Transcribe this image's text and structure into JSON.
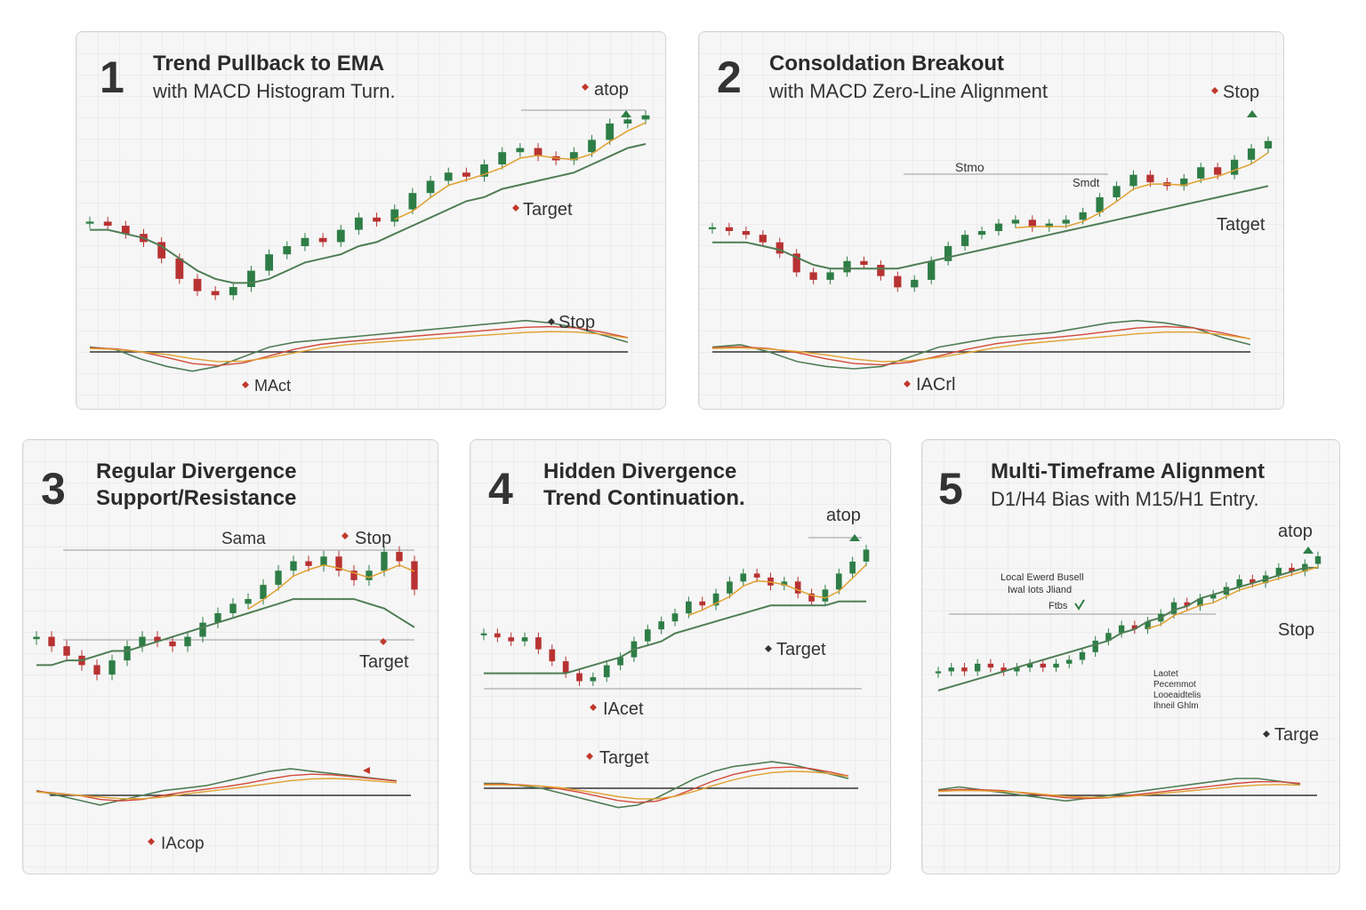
{
  "panels": [
    {
      "number": "1",
      "title": "Trend Pullback to EMA",
      "subtitle": "with MACD Histogram Turn.",
      "annotations": [
        "atop",
        "Target",
        "Stop",
        "MAct"
      ],
      "chart_data": {
        "type": "line",
        "series": [
          {
            "values": [
              72,
              71,
              69,
              67,
              63,
              58,
              55,
              54,
              56,
              60,
              64,
              66,
              68,
              67,
              70,
              73,
              72,
              75,
              79,
              82,
              84,
              83,
              86,
              89,
              90,
              88,
              87,
              89,
              92,
              96,
              97,
              98
            ]
          },
          {
            "values": [
              70,
              70,
              69,
              68,
              66,
              63,
              60,
              58,
              57,
              57,
              58,
              60,
              62,
              63,
              64,
              66,
              67,
              69,
              71,
              73,
              75,
              77,
              78,
              80,
              81,
              82,
              83,
              84,
              86,
              88,
              90,
              91
            ]
          }
        ],
        "macd": [
          1,
          0.5,
          -1.5,
          -3,
          -4,
          -3,
          -1,
          1,
          2,
          2.5,
          3,
          3.5,
          4,
          4.5,
          5,
          5.5,
          6,
          6.5,
          6,
          5,
          3.5,
          2
        ]
      }
    },
    {
      "number": "2",
      "title": "Consoldation Breakout",
      "subtitle": "with MACD Zero-Line Alignment",
      "annotations": [
        "Stop",
        "Stmo",
        "Smdt",
        "Tatget",
        "IACrl"
      ],
      "chart_data": {
        "type": "line",
        "series": [
          {
            "values": [
              72,
              71,
              70,
              68,
              65,
              60,
              58,
              60,
              63,
              62,
              59,
              56,
              58,
              63,
              67,
              70,
              71,
              73,
              74,
              72,
              73,
              74,
              76,
              80,
              83,
              86,
              84,
              83,
              85,
              88,
              86,
              90,
              93,
              95
            ]
          },
          {
            "values": [
              68,
              68,
              68,
              67,
              66,
              64,
              62,
              61,
              61,
              61,
              61,
              61,
              62,
              63,
              64,
              65,
              66,
              67,
              68,
              69,
              70,
              71,
              72,
              73,
              74,
              75,
              76,
              77,
              78,
              79,
              80,
              81,
              82,
              83
            ]
          }
        ],
        "macd": [
          1,
          1.5,
          0,
          -2,
          -3,
          -3.5,
          -3,
          -1,
          1,
          2,
          3,
          3.5,
          4,
          5,
          6,
          6.5,
          6,
          5,
          3,
          1.5
        ]
      }
    },
    {
      "number": "3",
      "title": "Regular Divergence",
      "subtitle": "Support/Resistance",
      "annotations": [
        "Sama",
        "Stop",
        "Target",
        "IAcop"
      ],
      "chart_data": {
        "type": "line",
        "series": [
          {
            "values": [
              68,
              66,
              64,
              62,
              60,
              63,
              66,
              68,
              67,
              66,
              68,
              71,
              73,
              75,
              76,
              79,
              82,
              84,
              83,
              85,
              82,
              80,
              82,
              86,
              84,
              78
            ]
          },
          {
            "values": [
              62,
              62,
              63,
              63,
              64,
              65,
              65,
              66,
              67,
              68,
              69,
              70,
              71,
              72,
              73,
              74,
              75,
              76,
              76,
              76,
              76,
              76,
              75,
              74,
              72,
              70
            ]
          }
        ],
        "macd": [
          1,
          0,
          -1,
          -2,
          -1,
          0,
          1,
          1.5,
          2,
          3,
          4,
          5,
          5.5,
          5,
          4.5,
          4,
          3.5,
          3
        ]
      }
    },
    {
      "number": "4",
      "title": "Hidden Divergence",
      "subtitle": "Trend Continuation.",
      "annotations": [
        "atop",
        "Target",
        "IAcet",
        "Target"
      ],
      "chart_data": {
        "type": "line",
        "series": [
          {
            "values": [
              70,
              69,
              68,
              69,
              66,
              63,
              60,
              58,
              59,
              62,
              64,
              68,
              71,
              73,
              75,
              78,
              77,
              80,
              83,
              85,
              84,
              82,
              83,
              80,
              78,
              81,
              85,
              88,
              91
            ]
          },
          {
            "values": [
              60,
              60,
              60,
              60,
              60,
              60,
              60,
              61,
              62,
              63,
              64,
              66,
              67,
              68,
              70,
              71,
              72,
              73,
              74,
              75,
              76,
              77,
              77,
              77,
              77,
              77,
              78,
              78,
              78
            ]
          }
        ],
        "macd": [
          1,
          1,
          0.5,
          0,
          -1,
          -2,
          -3,
          -4,
          -3.5,
          -2,
          0,
          2,
          3.5,
          4.5,
          5,
          5.5,
          5,
          4,
          3,
          2
        ]
      }
    },
    {
      "number": "5",
      "title": "Multi-Timeframe Alignment",
      "subtitle": "D1/H4 Bias with M15/H1 Entry.",
      "annotations": [
        "atop",
        "Local Ewerd Busell",
        "Iwal Iots Jliand",
        "Ftbs",
        "Stop",
        "Laotet",
        "Pecemmot",
        "Looeaidtelis",
        "Ihneil Ghlm",
        "Targe"
      ],
      "chart_data": {
        "type": "line",
        "series": [
          {
            "values": [
              60,
              61,
              60,
              62,
              61,
              60,
              61,
              62,
              61,
              62,
              63,
              65,
              68,
              70,
              72,
              71,
              73,
              75,
              78,
              77,
              79,
              80,
              82,
              84,
              83,
              85,
              87,
              86,
              88,
              90
            ]
          },
          {
            "values": [
              55,
              56,
              57,
              58,
              59,
              60,
              61,
              62,
              63,
              64,
              65,
              66,
              67,
              68,
              70,
              71,
              73,
              74,
              76,
              77,
              79,
              80,
              81,
              82,
              83,
              84,
              85,
              86,
              87,
              87
            ]
          }
        ],
        "macd": [
          1,
          1.5,
          1,
          0.5,
          0,
          -0.5,
          -1,
          -0.5,
          0,
          0.5,
          1,
          1.5,
          2,
          2.5,
          3,
          3,
          2.5,
          2
        ]
      }
    }
  ],
  "colors": {
    "bull": "#2e7d46",
    "bear": "#b83232",
    "ema_slow": "#4f7d55",
    "ema_fast": "#e0a030",
    "signal": "#d34a3a"
  }
}
